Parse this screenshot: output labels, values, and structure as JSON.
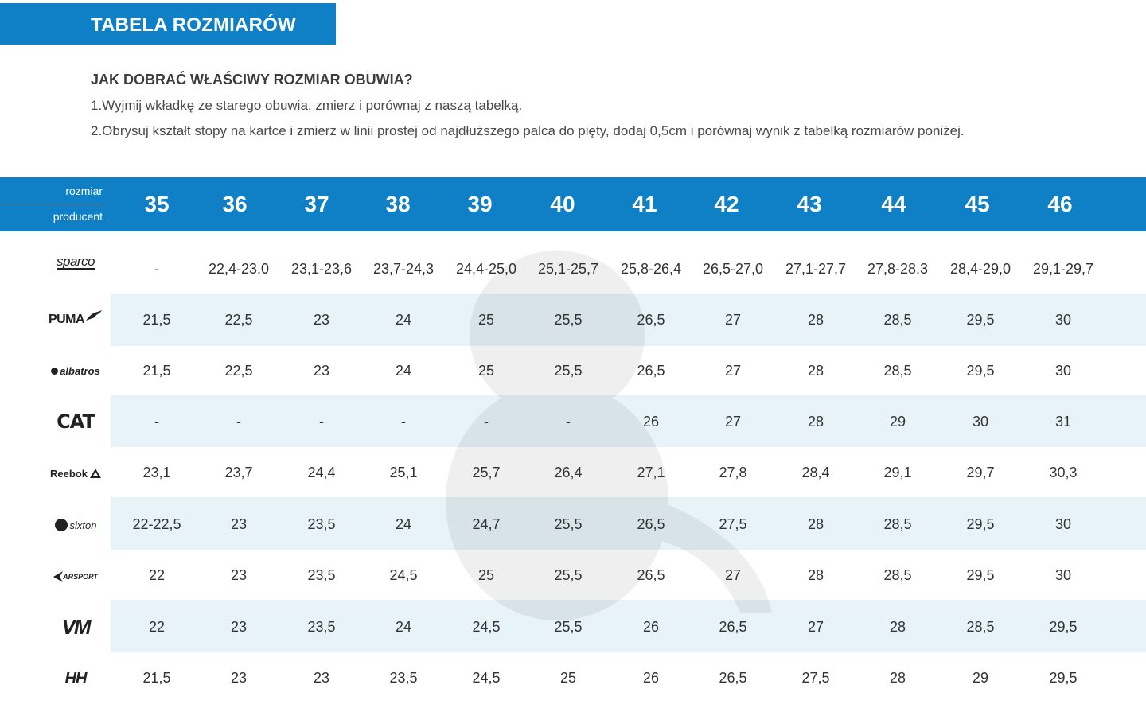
{
  "title": "TABELA ROZMIARÓW",
  "question": "JAK DOBRAĆ WŁAŚCIWY ROZMIAR OBUWIA?",
  "steps": [
    "1.Wyjmij wkładkę ze starego obuwia, zmierz i porównaj z naszą tabelką.",
    "2.Obrysuj kształt stopy na kartce i zmierz w linii prostej od najdłuższego palca do pięty, dodaj 0,5cm i porównaj wynik z tabelką rozmiarów poniżej."
  ],
  "table": {
    "header_label_top": "rozmiar",
    "header_label_bottom": "producent",
    "sizes": [
      "35",
      "36",
      "37",
      "38",
      "39",
      "40",
      "41",
      "42",
      "43",
      "44",
      "45",
      "46"
    ],
    "rows": [
      {
        "brand": "sparco",
        "values": [
          "-",
          "22,4-23,0",
          "23,1-23,6",
          "23,7-24,3",
          "24,4-25,0",
          "25,1-25,7",
          "25,8-26,4",
          "26,5-27,0",
          "27,1-27,7",
          "27,8-28,3",
          "28,4-29,0",
          "29,1-29,7"
        ]
      },
      {
        "brand": "PUMA",
        "values": [
          "21,5",
          "22,5",
          "23",
          "24",
          "25",
          "25,5",
          "26,5",
          "27",
          "28",
          "28,5",
          "29,5",
          "30"
        ]
      },
      {
        "brand": "albatros",
        "values": [
          "21,5",
          "22,5",
          "23",
          "24",
          "25",
          "25,5",
          "26,5",
          "27",
          "28",
          "28,5",
          "29,5",
          "30"
        ]
      },
      {
        "brand": "CAT",
        "values": [
          "-",
          "-",
          "-",
          "-",
          "-",
          "-",
          "26",
          "27",
          "28",
          "29",
          "30",
          "31"
        ]
      },
      {
        "brand": "Reebok",
        "values": [
          "23,1",
          "23,7",
          "24,4",
          "25,1",
          "25,7",
          "26,4",
          "27,1",
          "27,8",
          "28,4",
          "29,1",
          "29,7",
          "30,3"
        ]
      },
      {
        "brand": "sixton",
        "values": [
          "22-22,5",
          "23",
          "23,5",
          "24",
          "24,7",
          "25,5",
          "26,5",
          "27,5",
          "28",
          "28,5",
          "29,5",
          "30"
        ]
      },
      {
        "brand": "ARSPORT",
        "values": [
          "22",
          "23",
          "23,5",
          "24,5",
          "25",
          "25,5",
          "26,5",
          "27",
          "28",
          "28,5",
          "29,5",
          "30"
        ]
      },
      {
        "brand": "VM",
        "values": [
          "22",
          "23",
          "23,5",
          "24",
          "24,5",
          "25,5",
          "26",
          "26,5",
          "27",
          "28",
          "28,5",
          "29,5"
        ]
      },
      {
        "brand": "HH",
        "values": [
          "21,5",
          "23",
          "23",
          "23,5",
          "24,5",
          "25",
          "26",
          "26,5",
          "27,5",
          "28",
          "29",
          "29,5"
        ]
      }
    ]
  },
  "colors": {
    "accent": "#0f7fc6",
    "band": "#e7f2f9"
  }
}
